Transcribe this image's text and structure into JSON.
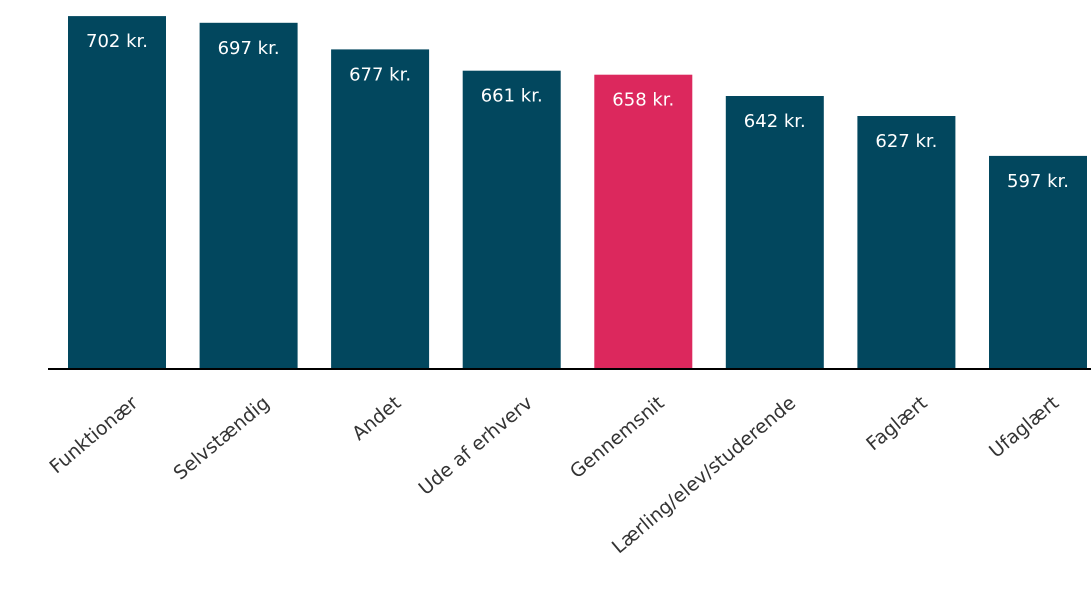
{
  "chart_data": {
    "type": "bar",
    "categories": [
      "Funktionær",
      "Selvstændig",
      "Andet",
      "Ude af erhverv",
      "Gennemsnit",
      "Lærling/elev/studerende",
      "Faglært",
      "Ufaglært"
    ],
    "values": [
      702,
      697,
      677,
      661,
      658,
      642,
      627,
      597
    ],
    "value_labels": [
      "702 kr.",
      "697 kr.",
      "677 kr.",
      "661 kr.",
      "658 kr.",
      "642 kr.",
      "627 kr.",
      "597 kr."
    ],
    "highlight_category": "Gennemsnit",
    "colors": {
      "default": "#02475e",
      "highlight": "#dc285d",
      "label_text": "#ffffff",
      "axis": "#000000",
      "category_text": "#333333"
    },
    "title": "",
    "xlabel": "",
    "ylabel": "",
    "ylim": [
      437,
      703
    ],
    "grid": false,
    "legend": "none"
  }
}
